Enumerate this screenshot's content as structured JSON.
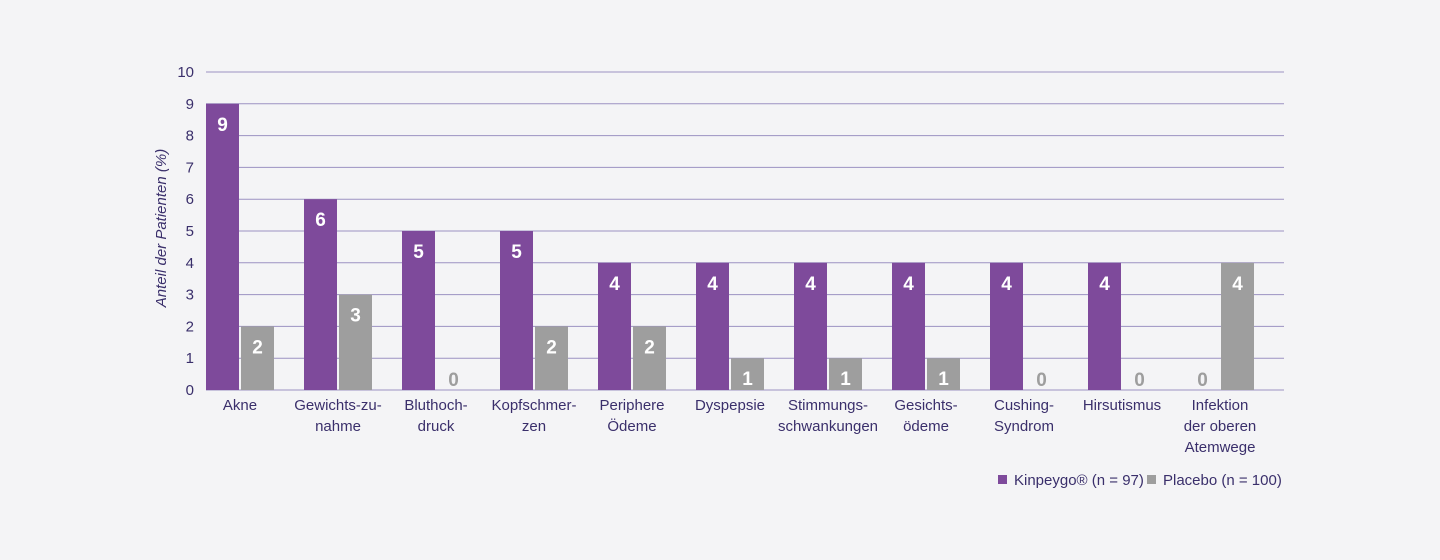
{
  "chart_data": {
    "type": "bar",
    "title": "",
    "xlabel": "",
    "ylabel": "Anteil der Patienten (%)",
    "ylim": [
      0,
      10
    ],
    "yticks": [
      "0",
      "1",
      "2",
      "3",
      "4",
      "5",
      "6",
      "7",
      "8",
      "9",
      "10"
    ],
    "grid": true,
    "categories": [
      [
        "Akne"
      ],
      [
        "Gewichts-zu-",
        "nahme"
      ],
      [
        "Bluthoch-",
        "druck"
      ],
      [
        "Kopfschmer-",
        "zen"
      ],
      [
        "Periphere",
        "Ödeme"
      ],
      [
        "Dyspepsie"
      ],
      [
        "Stimmungs-",
        "schwankungen"
      ],
      [
        "Gesichts-",
        "ödeme"
      ],
      [
        "Cushing-",
        "Syndrom"
      ],
      [
        "Hirsutismus"
      ],
      [
        "Infektion",
        "der oberen",
        "Atemwege"
      ]
    ],
    "series": [
      {
        "name": "Kinpeygo® (n = 97)",
        "color": "#7e4a9b",
        "values": [
          9,
          6,
          5,
          5,
          4,
          4,
          4,
          4,
          4,
          4,
          0
        ]
      },
      {
        "name": "Placebo (n = 100)",
        "color": "#9e9e9e",
        "values": [
          2,
          3,
          0,
          2,
          2,
          1,
          1,
          1,
          0,
          0,
          4
        ]
      }
    ],
    "legend_position": "bottom-right"
  }
}
